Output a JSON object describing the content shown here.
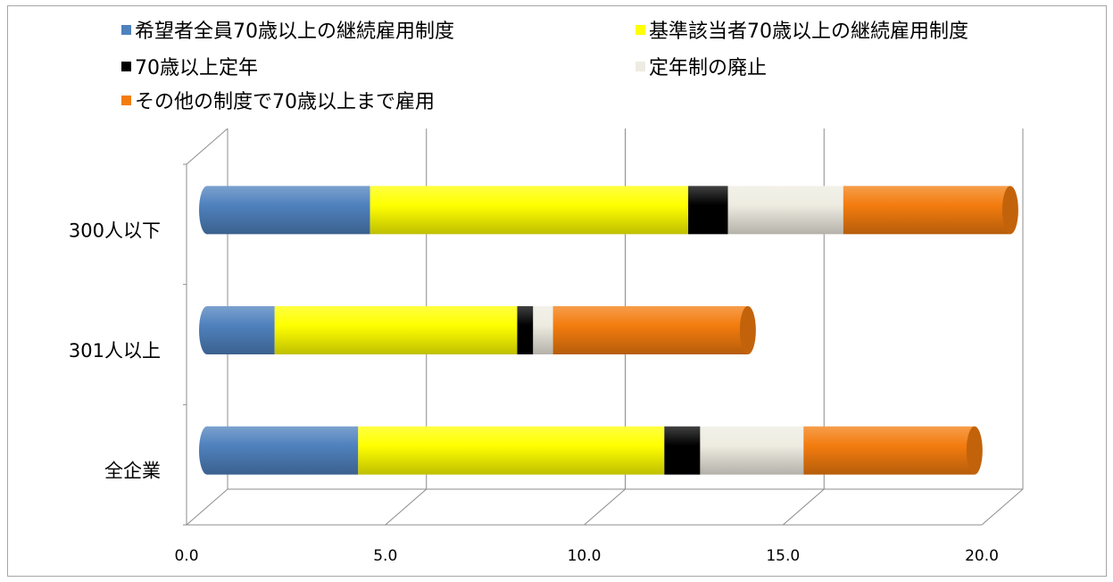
{
  "chart_data": {
    "type": "bar",
    "orientation": "horizontal",
    "stacked": true,
    "style": "3d-cylinder",
    "categories": [
      "300人以下",
      "301人以上",
      "全企業"
    ],
    "series": [
      {
        "name": "希望者全員70歳以上の継続雇用制度",
        "color": "#4f81bd",
        "values": [
          4.1,
          1.7,
          3.8
        ]
      },
      {
        "name": "基準該当者70歳以上の継続雇用制度",
        "color": "#ffff00",
        "values": [
          8.0,
          6.1,
          7.7
        ]
      },
      {
        "name": "70歳以上定年",
        "color": "#000000",
        "values": [
          1.0,
          0.4,
          0.9
        ]
      },
      {
        "name": "定年制の廃止",
        "color": "#eeece1",
        "values": [
          2.9,
          0.5,
          2.6
        ]
      },
      {
        "name": "その他の制度で70歳以上まで雇用",
        "color": "#f37c0e",
        "values": [
          4.2,
          4.9,
          4.3
        ]
      }
    ],
    "x_ticks": [
      "0.0",
      "5.0",
      "10.0",
      "15.0",
      "20.0"
    ],
    "xlim": [
      0,
      20
    ],
    "grid": true,
    "legend_position": "top"
  }
}
